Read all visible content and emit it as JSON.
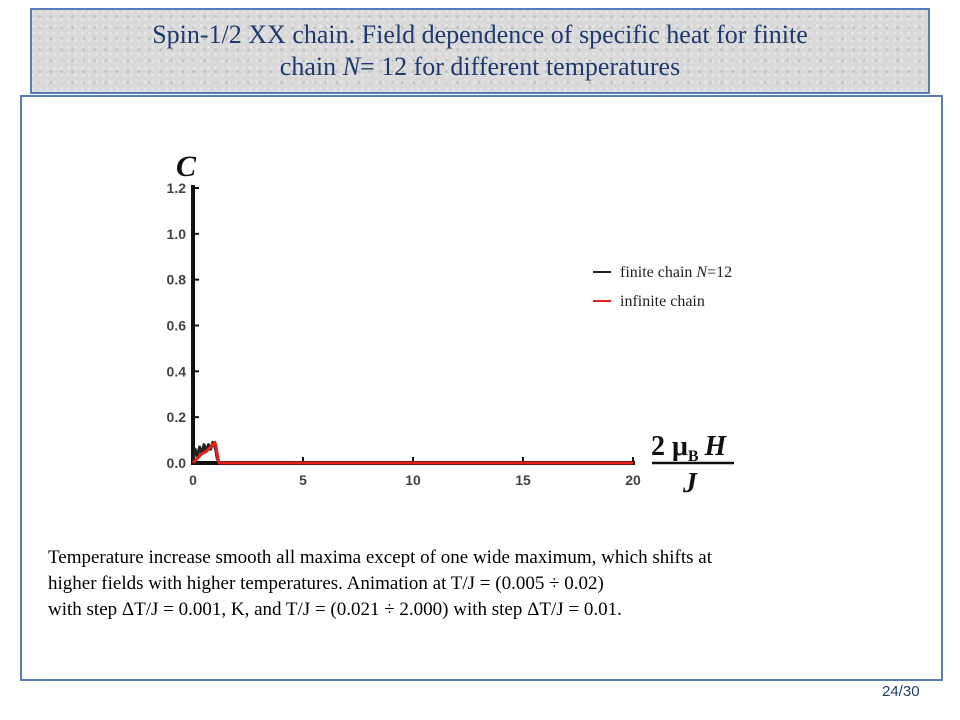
{
  "slide": {
    "title_line1": "Spin-1/2 XX chain. Field dependence of specific heat for finite",
    "title_line2_prefix": "chain ",
    "title_line2_var": "N",
    "title_line2_suffix": "= 12 for different temperatures",
    "caption_line1": "Temperature increase smooth  all maxima except of one wide maximum, which shifts at",
    "caption_line2": "higher fields with higher temperatures. Animation at T/J = (0.005 ÷ 0.02)",
    "caption_line3": "with step ΔT/J = 0.001, K,  and T/J = (0.021 ÷ 2.000) with step  ΔT/J = 0.01.",
    "page_number": "24/30",
    "border_color": "#5b7bb4",
    "title_color": "#1f3a6e"
  },
  "chart_data": {
    "type": "line",
    "title": "",
    "ylabel": "C",
    "xlabel": "2 μB H / J",
    "xlabel_num": "2 μ",
    "xlabel_sub": "B",
    "xlabel_h": "H",
    "xlabel_den": "J",
    "xlim": [
      0,
      20
    ],
    "ylim": [
      0,
      1.2
    ],
    "x_ticks": [
      "0",
      "5",
      "10",
      "15",
      "20"
    ],
    "y_ticks": [
      "0.0",
      "0.2",
      "0.4",
      "0.6",
      "0.8",
      "1.0",
      "1.2"
    ],
    "grid": false,
    "legend_position": "right",
    "series": [
      {
        "name": "finite chain N=12",
        "legend_text": "finite chain ",
        "legend_var": "N",
        "legend_suffix": "=12",
        "color": "#222222",
        "x": [
          0,
          0.1,
          0.2,
          0.3,
          0.4,
          0.5,
          0.6,
          0.7,
          0.8,
          0.9,
          1.0,
          1.05,
          1.1,
          1.2,
          1.5,
          2,
          5,
          10,
          15,
          20
        ],
        "y": [
          0.0,
          0.06,
          0.03,
          0.07,
          0.04,
          0.08,
          0.05,
          0.08,
          0.06,
          0.09,
          0.07,
          0.05,
          0.02,
          0.0,
          0.0,
          0.0,
          0.0,
          0.0,
          0.0,
          0.0
        ]
      },
      {
        "name": "infinite chain",
        "legend_text": "infinite chain",
        "color": "#e8201c",
        "x": [
          0,
          0.2,
          0.4,
          0.6,
          0.8,
          0.9,
          1.0,
          1.05,
          1.1,
          1.15,
          1.2,
          1.5,
          2,
          5,
          10,
          15,
          20
        ],
        "y": [
          0.0,
          0.02,
          0.04,
          0.05,
          0.07,
          0.08,
          0.09,
          0.07,
          0.04,
          0.01,
          0.0,
          0.0,
          0.0,
          0.0,
          0.0,
          0.0,
          0.0
        ]
      }
    ]
  }
}
